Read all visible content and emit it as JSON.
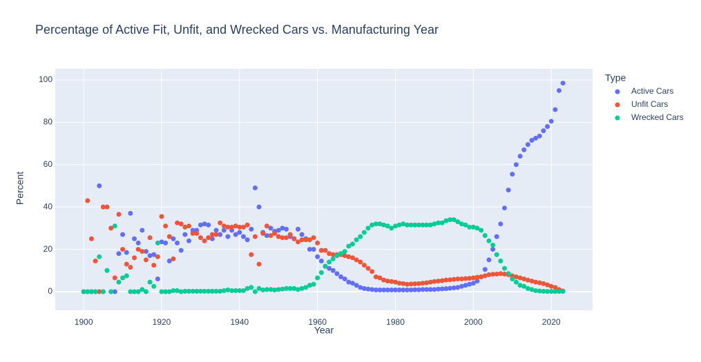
{
  "chart_data": {
    "type": "scatter",
    "title": "Percentage of Active Fit, Unfit, and Wrecked Cars vs. Manufacturing Year",
    "x_label": "Year",
    "y_label": "Percent",
    "legend_title": "Type",
    "xlim": [
      1892.7,
      2030.6
    ],
    "ylim": [
      -8.8,
      105.2
    ],
    "xticks": [
      1900,
      1920,
      1940,
      1960,
      1980,
      2000,
      2020
    ],
    "yticks": [
      0,
      20,
      40,
      60,
      80,
      100
    ],
    "grid": true,
    "x": [
      1900,
      1901,
      1902,
      1903,
      1904,
      1905,
      1906,
      1907,
      1908,
      1909,
      1910,
      1911,
      1912,
      1913,
      1914,
      1915,
      1916,
      1917,
      1918,
      1919,
      1920,
      1921,
      1922,
      1923,
      1924,
      1925,
      1926,
      1927,
      1928,
      1929,
      1930,
      1931,
      1932,
      1933,
      1934,
      1935,
      1936,
      1937,
      1938,
      1939,
      1940,
      1941,
      1942,
      1943,
      1944,
      1945,
      1946,
      1947,
      1948,
      1949,
      1950,
      1951,
      1952,
      1953,
      1954,
      1955,
      1956,
      1957,
      1958,
      1959,
      1960,
      1961,
      1962,
      1963,
      1964,
      1965,
      1966,
      1967,
      1968,
      1969,
      1970,
      1971,
      1972,
      1973,
      1974,
      1975,
      1976,
      1977,
      1978,
      1979,
      1980,
      1981,
      1982,
      1983,
      1984,
      1985,
      1986,
      1987,
      1988,
      1989,
      1990,
      1991,
      1992,
      1993,
      1994,
      1995,
      1996,
      1997,
      1998,
      1999,
      2000,
      2001,
      2002,
      2003,
      2004,
      2005,
      2006,
      2007,
      2008,
      2009,
      2010,
      2011,
      2012,
      2013,
      2014,
      2015,
      2016,
      2017,
      2018,
      2019,
      2020,
      2021,
      2022,
      2023
    ],
    "series": [
      {
        "name": "Active Cars",
        "color": "#636efa",
        "values": [
          0,
          0,
          0,
          0,
          50,
          0,
          10,
          0,
          0,
          18,
          27,
          18.5,
          37,
          25,
          23,
          29,
          19,
          17,
          17.5,
          6,
          23.5,
          23,
          14.5,
          25,
          23,
          19.5,
          27,
          24,
          29,
          29,
          31.5,
          32,
          31.5,
          25,
          29,
          27,
          29,
          26,
          29,
          27,
          28,
          26,
          24.5,
          29.5,
          49,
          40,
          28,
          26.5,
          30,
          28.5,
          29,
          30,
          29.5,
          26,
          25,
          29.5,
          27,
          25,
          20,
          20,
          16.5,
          14.5,
          12,
          11,
          10,
          8.5,
          7,
          6,
          4.5,
          4,
          3,
          2,
          1.5,
          1.2,
          1,
          0.8,
          0.8,
          0.8,
          0.8,
          0.8,
          0.8,
          0.8,
          0.8,
          0.8,
          0.8,
          0.9,
          0.9,
          1,
          1,
          1,
          1,
          1.2,
          1.3,
          1.4,
          1.6,
          1.8,
          2,
          2.5,
          3,
          3.5,
          4,
          5,
          7,
          10.5,
          15,
          20,
          26,
          32,
          39.5,
          48,
          55.5,
          60,
          64,
          67,
          69.5,
          71.5,
          72.5,
          73.5,
          76,
          78,
          80.5,
          86,
          95,
          98.5
        ]
      },
      {
        "name": "Unfit Cars",
        "color": "#ef553b",
        "values": [
          0,
          43,
          25,
          14.5,
          0,
          40,
          40,
          30,
          6.5,
          36.5,
          20,
          13,
          11.5,
          16,
          20,
          19,
          15,
          25.5,
          12.5,
          16.5,
          35.5,
          31,
          26,
          15.5,
          32.5,
          32,
          30.5,
          31,
          27.5,
          27.5,
          25.5,
          24,
          25.5,
          27,
          27,
          32.5,
          31,
          30.5,
          30.5,
          31,
          30.5,
          30.5,
          31.5,
          17.5,
          26,
          13,
          27.5,
          31,
          26.5,
          27.5,
          26,
          25.5,
          25.5,
          27,
          25,
          23.5,
          24.5,
          24.5,
          24.5,
          25.5,
          23,
          19.5,
          19.5,
          18,
          17.5,
          17.5,
          17.5,
          17,
          16.5,
          16,
          15,
          14,
          12.5,
          11,
          9.5,
          7,
          6.5,
          5.5,
          5,
          4.8,
          4.5,
          4,
          3.8,
          3.5,
          3.6,
          3.7,
          3.8,
          4,
          4.2,
          4.5,
          4.8,
          5,
          5.2,
          5.5,
          5.6,
          5.8,
          6,
          6,
          6.2,
          6.3,
          6.5,
          6.8,
          7,
          7.5,
          8,
          8.2,
          8.3,
          8.5,
          8.3,
          8,
          7.5,
          7,
          6.5,
          6,
          5.5,
          5,
          4.5,
          4.2,
          3.8,
          3.2,
          2.5,
          2,
          1,
          0.3
        ]
      },
      {
        "name": "Wrecked Cars",
        "color": "#00cc96",
        "values": [
          0,
          0,
          0,
          0,
          16.5,
          0,
          10,
          0,
          31,
          4.5,
          6.5,
          7.5,
          0,
          0,
          0,
          1,
          0,
          4.5,
          2.5,
          23,
          0,
          0,
          0,
          0.5,
          0.5,
          0,
          0.2,
          0.2,
          0.2,
          0.2,
          0.2,
          0.2,
          0.2,
          0.2,
          0.2,
          0.2,
          0.5,
          0.8,
          0.5,
          0.5,
          0.5,
          0.5,
          1.5,
          2,
          0,
          1.5,
          0.8,
          1,
          1,
          0.8,
          1,
          1.2,
          1.5,
          1.5,
          1.5,
          1,
          1.5,
          2,
          3,
          3.5,
          6.5,
          9,
          12,
          14,
          15.5,
          17,
          18,
          19,
          21.5,
          22.5,
          24.5,
          26,
          28,
          30,
          31.5,
          32,
          32,
          31.5,
          31,
          30,
          31,
          31.5,
          32,
          31.5,
          31.5,
          31.5,
          31.5,
          31.5,
          31.5,
          31.5,
          32,
          32.5,
          32.5,
          33.5,
          34,
          34,
          33,
          32,
          31.5,
          30.5,
          30.5,
          30,
          29,
          26.5,
          24,
          22,
          17.5,
          14.5,
          11,
          8.5,
          6,
          4.5,
          3,
          2.5,
          1.5,
          1,
          0.5,
          0.3,
          0.2,
          0.1,
          0.1,
          0.1,
          0.1,
          0.1
        ]
      }
    ]
  }
}
